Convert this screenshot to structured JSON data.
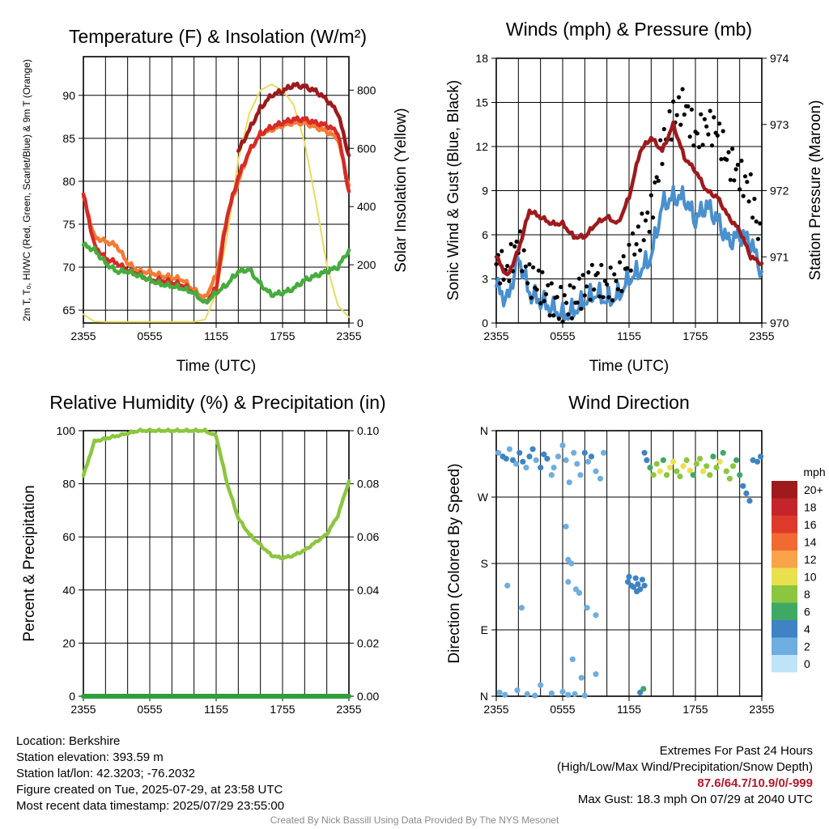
{
  "panels": {
    "temperature": {
      "title": "Temperature (F) & Insolation (W/m²)",
      "ylabel_left": "2m T, Tₒ, HI/WC (Red, Green, Scarlet/Blue) & 9m T (Orange)",
      "ylabel_right": "Solar Insolation (Yellow)",
      "xlabel": "Time (UTC)"
    },
    "winds": {
      "title": "Winds (mph) & Pressure (mb)",
      "ylabel_left": "Sonic Wind & Gust (Blue, Black)",
      "ylabel_right": "Station Pressure (Maroon)",
      "xlabel": "Time (UTC)"
    },
    "humidity": {
      "title": "Relative Humidity (%) & Precipitation (in)",
      "ylabel_left": "Percent & Precipitation"
    },
    "direction": {
      "title": "Wind Direction",
      "ylabel_left": "Direction (Colored By Speed)",
      "legend_title": "mph",
      "legend_labels": [
        "20+",
        "18",
        "16",
        "14",
        "12",
        "10",
        "8",
        "6",
        "4",
        "2",
        "0"
      ],
      "legend_colors": [
        "#9e1a1d",
        "#c3252a",
        "#de3a2b",
        "#f06a32",
        "#f9a44a",
        "#e9e04e",
        "#8cc63f",
        "#3fa964",
        "#3f83c4",
        "#6eaee0",
        "#bfe3f7"
      ]
    }
  },
  "chart_data": [
    {
      "type": "line",
      "title": "Temperature (F) & Insolation (W/m²)",
      "xlabel": "Time (UTC)",
      "ylabel": "2m T, Tₒ, HI/WC (Red, Green, Scarlet/Blue) & 9m T (Orange)",
      "ylabel_right": "Solar Insolation (Yellow)",
      "x_tick_labels": [
        "2355",
        "0555",
        "1155",
        "1755",
        "2355"
      ],
      "x_hours": [
        0,
        1,
        2,
        3,
        4,
        5,
        6,
        7,
        8,
        9,
        10,
        11,
        12,
        13,
        14,
        15,
        16,
        17,
        18,
        19,
        20,
        21,
        22,
        23,
        24
      ],
      "ylim": [
        63.5,
        94.5
      ],
      "y_ticks": [
        65,
        70,
        75,
        80,
        85,
        90
      ],
      "y2lim": [
        0,
        915
      ],
      "y2_ticks": [
        0,
        200,
        400,
        600,
        800
      ],
      "grid": true,
      "series": [
        {
          "color": "#e9dc5c",
          "axis": "right",
          "values": [
            30,
            5,
            4,
            4,
            4,
            4,
            4,
            4,
            4,
            4,
            4,
            12,
            100,
            300,
            560,
            720,
            800,
            820,
            800,
            750,
            620,
            420,
            200,
            60,
            20
          ]
        },
        {
          "color": "#f47b34",
          "axis": "left",
          "values": [
            78.2,
            73.5,
            73,
            72.5,
            70.5,
            69.5,
            69.4,
            69,
            68.8,
            68.5,
            67.3,
            66.4,
            69,
            76,
            80,
            83.5,
            85.5,
            86,
            86.5,
            86.8,
            86.8,
            86.3,
            85.8,
            85,
            79.5
          ]
        },
        {
          "color": "#d62b27",
          "axis": "left",
          "values": [
            78.5,
            72.5,
            71,
            70.5,
            69.6,
            69.2,
            68.5,
            68.5,
            68.2,
            67.9,
            67,
            65.8,
            67.5,
            76,
            80.5,
            83.5,
            85.5,
            86.3,
            86.8,
            87.2,
            87.2,
            86.8,
            86.5,
            85.7,
            78.8
          ]
        },
        {
          "color": "#9e1a1d",
          "axis": "left",
          "values": [
            null,
            null,
            null,
            null,
            null,
            null,
            null,
            null,
            null,
            null,
            null,
            null,
            null,
            null,
            83.5,
            86,
            88.5,
            90,
            90.5,
            91.2,
            91,
            90.5,
            89.5,
            88,
            83
          ]
        },
        {
          "color": "#45ac3d",
          "axis": "left",
          "values": [
            72.6,
            72,
            70.5,
            69.5,
            69.5,
            69,
            68.5,
            68,
            67.8,
            67.5,
            67,
            65.8,
            67,
            68,
            69.5,
            69.7,
            68,
            66.8,
            67,
            67.5,
            68.5,
            69,
            69.5,
            70,
            72
          ]
        }
      ]
    },
    {
      "type": "line",
      "title": "Winds (mph) & Pressure (mb)",
      "xlabel": "Time (UTC)",
      "ylabel": "Sonic Wind & Gust (Blue, Black)",
      "ylabel_right": "Station Pressure (Maroon)",
      "x_tick_labels": [
        "2355",
        "0555",
        "1155",
        "1755",
        "2355"
      ],
      "x_hours": [
        0,
        1,
        2,
        3,
        4,
        5,
        6,
        7,
        8,
        9,
        10,
        11,
        12,
        13,
        14,
        15,
        16,
        17,
        18,
        19,
        20,
        21,
        22,
        23,
        24
      ],
      "ylim": [
        0,
        18
      ],
      "y_ticks": [
        0,
        3,
        6,
        9,
        12,
        15,
        18
      ],
      "y2lim": [
        970,
        974
      ],
      "y2_ticks": [
        970,
        971,
        972,
        973,
        974
      ],
      "grid": true,
      "series": [
        {
          "color": "#4a90cf",
          "axis": "left",
          "values": [
            2.5,
            1.5,
            4.5,
            2.0,
            1.5,
            1.0,
            0.5,
            0.8,
            1.5,
            2.0,
            1.5,
            1.8,
            3.0,
            3.5,
            4.5,
            8.0,
            8.5,
            8.5,
            7.0,
            8.0,
            7.0,
            5.5,
            6.0,
            5.5,
            3.5
          ]
        },
        {
          "color": "#000000",
          "axis": "left",
          "values": [
            4.0,
            3.5,
            5.5,
            3.0,
            2.5,
            1.5,
            1.2,
            1.5,
            2.5,
            3.0,
            2.5,
            2.8,
            4.5,
            6.0,
            7.5,
            12.0,
            14.0,
            15.0,
            12.5,
            13.5,
            13.0,
            11.0,
            10.0,
            9.0,
            5.0
          ]
        },
        {
          "color": "#9e1a1d",
          "axis": "right",
          "values": [
            971.0,
            970.7,
            971.1,
            971.7,
            971.6,
            971.5,
            971.5,
            971.3,
            971.3,
            971.5,
            971.6,
            971.5,
            971.9,
            972.6,
            972.8,
            972.6,
            973.0,
            972.5,
            972.3,
            972.0,
            971.9,
            971.6,
            971.4,
            971.0,
            970.9
          ]
        }
      ]
    },
    {
      "type": "line",
      "title": "Relative Humidity (%) & Precipitation (in)",
      "ylabel": "Percent & Precipitation",
      "x_tick_labels": [
        "2355",
        "0555",
        "1155",
        "1755",
        "2355"
      ],
      "x_hours": [
        0,
        1,
        2,
        3,
        4,
        5,
        6,
        7,
        8,
        9,
        10,
        11,
        12,
        13,
        14,
        15,
        16,
        17,
        18,
        19,
        20,
        21,
        22,
        23,
        24
      ],
      "ylim": [
        0,
        100
      ],
      "y_ticks": [
        0,
        20,
        40,
        60,
        80,
        100
      ],
      "y2lim": [
        0,
        0.1
      ],
      "y2_ticks": [
        0.0,
        0.02,
        0.04,
        0.06,
        0.08,
        0.1
      ],
      "grid": true,
      "series": [
        {
          "color": "#8cc63f",
          "axis": "left",
          "values": [
            83,
            96,
            97,
            98,
            99,
            100,
            100,
            100,
            100,
            100,
            100,
            100,
            98,
            80,
            67,
            61,
            57,
            53,
            52,
            53,
            55,
            58,
            61,
            68,
            81
          ]
        },
        {
          "color": "#2f9e3c",
          "axis": "right",
          "values": [
            0,
            0,
            0,
            0,
            0,
            0,
            0,
            0,
            0,
            0,
            0,
            0,
            0,
            0,
            0,
            0,
            0,
            0,
            0,
            0,
            0,
            0,
            0,
            0,
            0
          ]
        }
      ]
    },
    {
      "type": "scatter",
      "title": "Wind Direction",
      "ylabel": "Direction (Colored By Speed)",
      "x_tick_labels": [
        "2355",
        "0555",
        "1155",
        "1755",
        "2355"
      ],
      "y_tick_labels": [
        "N",
        "E",
        "S",
        "W",
        "N"
      ],
      "y_ticks": [
        0,
        90,
        180,
        270,
        360
      ],
      "ylim": [
        0,
        360
      ],
      "xlim": [
        0,
        24
      ],
      "grid": true,
      "points": [
        [
          0.2,
          330,
          2
        ],
        [
          0.6,
          325,
          3
        ],
        [
          0.9,
          322,
          4
        ],
        [
          1.2,
          335,
          2
        ],
        [
          1.5,
          320,
          3
        ],
        [
          1.8,
          315,
          2
        ],
        [
          2.1,
          330,
          4
        ],
        [
          2.4,
          318,
          3
        ],
        [
          2.7,
          310,
          2
        ],
        [
          3.0,
          325,
          3
        ],
        [
          3.3,
          335,
          4
        ],
        [
          3.6,
          320,
          2
        ],
        [
          4.0,
          310,
          3
        ],
        [
          4.3,
          328,
          4
        ],
        [
          4.6,
          322,
          3
        ],
        [
          5.0,
          300,
          2
        ],
        [
          5.2,
          310,
          2
        ],
        [
          5.6,
          325,
          2
        ],
        [
          6.0,
          340,
          2
        ],
        [
          6.3,
          320,
          1
        ],
        [
          6.6,
          290,
          2
        ],
        [
          7.0,
          330,
          1
        ],
        [
          7.3,
          315,
          2
        ],
        [
          7.6,
          300,
          1
        ],
        [
          8.0,
          330,
          3
        ],
        [
          8.3,
          318,
          2
        ],
        [
          8.6,
          325,
          3
        ],
        [
          9.0,
          305,
          2
        ],
        [
          9.4,
          295,
          2
        ],
        [
          9.7,
          330,
          2
        ],
        [
          0.3,
          5,
          1
        ],
        [
          0.8,
          2,
          1
        ],
        [
          1.9,
          8,
          1
        ],
        [
          2.8,
          3,
          1
        ],
        [
          3.5,
          1,
          1
        ],
        [
          4.0,
          15,
          1
        ],
        [
          5.0,
          4,
          1
        ],
        [
          6.0,
          6,
          2
        ],
        [
          6.5,
          2,
          1
        ],
        [
          7.1,
          3,
          1
        ],
        [
          8.0,
          1,
          1
        ],
        [
          9.0,
          30,
          1
        ],
        [
          6.9,
          50,
          1
        ],
        [
          7.7,
          25,
          1
        ],
        [
          1.0,
          150,
          2
        ],
        [
          2.3,
          120,
          1
        ],
        [
          6.5,
          185,
          1
        ],
        [
          6.8,
          180,
          1
        ],
        [
          7.2,
          145,
          2
        ],
        [
          7.5,
          140,
          2
        ],
        [
          8.2,
          120,
          1
        ],
        [
          9.0,
          110,
          1
        ],
        [
          6.3,
          230,
          1
        ],
        [
          6.5,
          155,
          1
        ],
        [
          11.9,
          155,
          4
        ],
        [
          12.2,
          150,
          4
        ],
        [
          12.4,
          148,
          3
        ],
        [
          12.6,
          160,
          4
        ],
        [
          12.8,
          152,
          4
        ],
        [
          13.0,
          145,
          3
        ],
        [
          13.2,
          158,
          4
        ],
        [
          13.4,
          150,
          4
        ],
        [
          12.0,
          162,
          3
        ],
        [
          12.7,
          142,
          4
        ],
        [
          13.4,
          330,
          4
        ],
        [
          13.6,
          320,
          4
        ],
        [
          13.9,
          310,
          6
        ],
        [
          14.2,
          300,
          8
        ],
        [
          14.5,
          315,
          7
        ],
        [
          14.8,
          305,
          9
        ],
        [
          15.1,
          320,
          6
        ],
        [
          15.4,
          300,
          8
        ],
        [
          15.7,
          310,
          9
        ],
        [
          16.0,
          318,
          10
        ],
        [
          16.3,
          305,
          8
        ],
        [
          16.6,
          298,
          7
        ],
        [
          16.9,
          312,
          10
        ],
        [
          17.2,
          320,
          8
        ],
        [
          17.5,
          306,
          9
        ],
        [
          17.8,
          300,
          6
        ],
        [
          18.1,
          315,
          8
        ],
        [
          18.4,
          322,
          7
        ],
        [
          18.7,
          305,
          9
        ],
        [
          19.0,
          312,
          8
        ],
        [
          19.3,
          300,
          7
        ],
        [
          19.6,
          325,
          6
        ],
        [
          19.9,
          310,
          8
        ],
        [
          20.2,
          318,
          9
        ],
        [
          20.5,
          330,
          6
        ],
        [
          20.8,
          305,
          8
        ],
        [
          21.1,
          295,
          7
        ],
        [
          21.4,
          312,
          8
        ],
        [
          21.7,
          320,
          5
        ],
        [
          22.0,
          300,
          6
        ],
        [
          22.3,
          285,
          4
        ],
        [
          22.6,
          275,
          4
        ],
        [
          22.9,
          265,
          3
        ],
        [
          23.2,
          320,
          4
        ],
        [
          23.6,
          318,
          4
        ],
        [
          23.9,
          325,
          3
        ],
        [
          13.0,
          5,
          4
        ],
        [
          13.3,
          10,
          6
        ]
      ]
    }
  ],
  "info": {
    "location": "Location: Berkshire",
    "elevation": "Station elevation: 393.59 m",
    "latlon": "Station lat/lon: 42.3203; -76.2032",
    "created": "Figure created on Tue, 2025-07-29, at 23:58 UTC",
    "recent": "Most recent data timestamp: 2025/07/29 23:55:00",
    "extremes_title": "Extremes For Past 24 Hours",
    "extremes_subtitle": "(High/Low/Max Wind/Precipitation/Snow Depth)",
    "extremes_values": "87.6/64.7/10.9/0/-999",
    "max_gust": "Max Gust: 18.3 mph On 07/29 at 2040 UTC"
  },
  "credit": "Created By Nick Bassill Using Data Provided By The NYS Mesonet"
}
